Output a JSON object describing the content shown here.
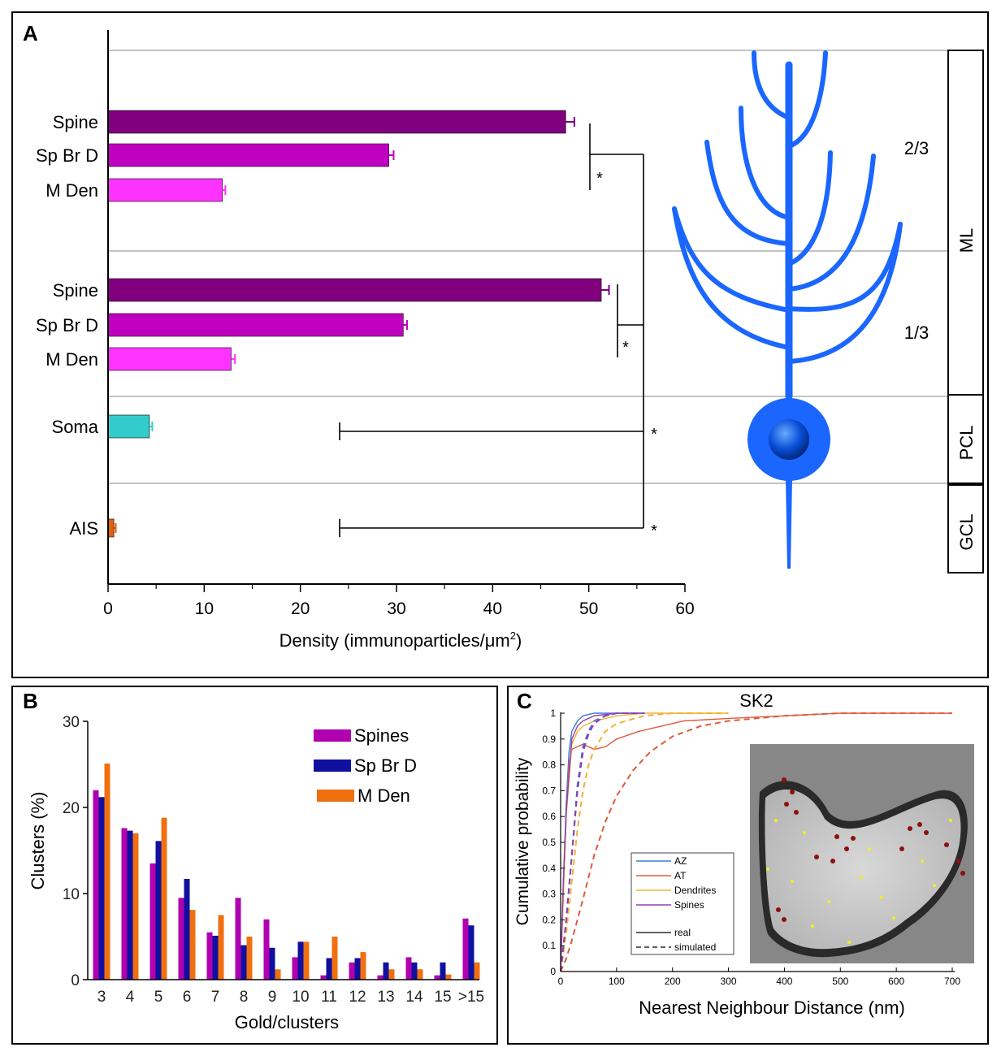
{
  "panelA": {
    "letter": "A",
    "xlabel_prefix": "Density (immunoparticles/",
    "xlabel_mu": "μm",
    "xlabel_sup": "2",
    "xlabel_suffix": ")",
    "star": "*",
    "layers": {
      "upper": "2/3",
      "lower": "1/3",
      "ml": "ML",
      "pcl": "PCL",
      "gcl": "GCL"
    },
    "colors": {
      "spine": "#800080",
      "spbrd": "#c000c0",
      "mden": "#ff33ff",
      "soma": "#33cccc",
      "ais": "#e06010",
      "neuron": "#1a66ff"
    }
  },
  "panelB": {
    "letter": "B",
    "colors": {
      "spines": "#b000b0",
      "spbrd": "#1010a0",
      "mden": "#f07010"
    }
  },
  "panelC": {
    "letter": "C",
    "title": "SK2",
    "legend": {
      "items": [
        "AZ",
        "AT",
        "Dendrites",
        "Spines"
      ],
      "real": "real",
      "simulated": "simulated"
    },
    "colors": {
      "AZ": "#3c78d8",
      "AT": "#e05a3c",
      "Dendrites": "#f0b030",
      "Spines": "#9040b0"
    }
  },
  "chart_data": [
    {
      "type": "bar",
      "orientation": "horizontal",
      "title": "",
      "xlabel": "Density (immunoparticles/μm2)",
      "xlim": [
        0,
        60
      ],
      "xticks": [
        0,
        10,
        20,
        30,
        40,
        50,
        60
      ],
      "categories": [
        "Spine",
        "Sp Br D",
        "M Den",
        "Spine",
        "Sp Br D",
        "M Den",
        "Soma",
        "AIS"
      ],
      "values": [
        47.6,
        29.2,
        11.9,
        51.3,
        30.7,
        12.8,
        4.3,
        0.6
      ],
      "errors": [
        0.9,
        0.5,
        0.3,
        0.8,
        0.4,
        0.4,
        0.3,
        0.2
      ]
    },
    {
      "type": "bar",
      "xlabel": "Gold/clusters",
      "ylabel": "Clusters (%)",
      "ylim": [
        0,
        30
      ],
      "yticks": [
        0,
        10,
        20,
        30
      ],
      "categories": [
        "3",
        "4",
        "5",
        "6",
        "7",
        "8",
        "9",
        "10",
        "11",
        "12",
        "13",
        "14",
        "15",
        ">15"
      ],
      "series": [
        {
          "name": "Spines",
          "values": [
            22.0,
            17.6,
            13.5,
            9.5,
            5.5,
            9.5,
            7.0,
            2.6,
            0.5,
            2.0,
            0.5,
            2.6,
            0.5,
            7.1
          ]
        },
        {
          "name": "Sp Br D",
          "values": [
            21.2,
            17.3,
            16.1,
            11.7,
            5.1,
            4.0,
            3.7,
            4.4,
            2.5,
            2.5,
            2.0,
            2.0,
            2.0,
            6.3
          ]
        },
        {
          "name": "M Den",
          "values": [
            25.1,
            17.0,
            18.8,
            8.1,
            7.5,
            5.0,
            1.2,
            4.4,
            5.0,
            3.2,
            1.2,
            1.2,
            0.6,
            2.0
          ]
        }
      ]
    },
    {
      "type": "line",
      "title": "SK2",
      "xlabel": "Nearest Neighbour Distance (nm)",
      "ylabel": "Cumulative probability",
      "xlim": [
        0,
        700
      ],
      "ylim": [
        0,
        1
      ],
      "xticks": [
        0,
        100,
        200,
        300,
        400,
        500,
        600,
        700
      ],
      "yticks": [
        0,
        0.1,
        0.2,
        0.3,
        0.4,
        0.5,
        0.6,
        0.7,
        0.8,
        0.9,
        1
      ],
      "series": [
        {
          "name": "AZ real",
          "dash": false,
          "x": [
            0,
            5,
            10,
            15,
            20,
            30,
            40,
            60,
            100,
            150
          ],
          "y": [
            0,
            0.35,
            0.65,
            0.85,
            0.93,
            0.97,
            0.99,
            1,
            1,
            1
          ]
        },
        {
          "name": "AT real",
          "dash": false,
          "x": [
            0,
            5,
            10,
            15,
            20,
            30,
            40,
            50,
            60,
            80,
            100,
            140,
            180,
            220,
            300,
            400,
            500,
            700
          ],
          "y": [
            0,
            0.3,
            0.6,
            0.8,
            0.86,
            0.87,
            0.88,
            0.87,
            0.86,
            0.87,
            0.9,
            0.93,
            0.95,
            0.97,
            0.98,
            0.99,
            1,
            1
          ]
        },
        {
          "name": "Dendrites real",
          "dash": false,
          "x": [
            0,
            5,
            10,
            20,
            30,
            40,
            60,
            80,
            100,
            150,
            200,
            300
          ],
          "y": [
            0,
            0.3,
            0.6,
            0.88,
            0.93,
            0.95,
            0.97,
            0.98,
            0.99,
            1,
            1,
            1
          ]
        },
        {
          "name": "Spines real",
          "dash": false,
          "x": [
            0,
            5,
            10,
            20,
            30,
            40,
            60,
            100,
            150
          ],
          "y": [
            0,
            0.35,
            0.62,
            0.9,
            0.95,
            0.97,
            0.99,
            1,
            1
          ]
        },
        {
          "name": "AZ simulated",
          "dash": true,
          "x": [
            0,
            10,
            20,
            30,
            40,
            50,
            60,
            80,
            100,
            150
          ],
          "y": [
            0,
            0.2,
            0.45,
            0.72,
            0.87,
            0.93,
            0.97,
            0.99,
            1,
            1
          ]
        },
        {
          "name": "AT simulated",
          "dash": true,
          "x": [
            0,
            10,
            20,
            40,
            60,
            80,
            100,
            130,
            160,
            200,
            250,
            300,
            400,
            500,
            600,
            700
          ],
          "y": [
            0,
            0.05,
            0.12,
            0.28,
            0.45,
            0.58,
            0.68,
            0.78,
            0.85,
            0.91,
            0.95,
            0.97,
            0.99,
            1,
            1,
            1
          ]
        },
        {
          "name": "Dendrites simulated",
          "dash": true,
          "x": [
            0,
            10,
            20,
            30,
            40,
            50,
            60,
            80,
            100,
            150,
            200,
            300
          ],
          "y": [
            0,
            0.15,
            0.35,
            0.55,
            0.7,
            0.8,
            0.86,
            0.93,
            0.96,
            0.99,
            1,
            1
          ]
        },
        {
          "name": "Spines simulated",
          "dash": true,
          "x": [
            0,
            10,
            20,
            30,
            40,
            50,
            60,
            80,
            100,
            150
          ],
          "y": [
            0,
            0.2,
            0.45,
            0.7,
            0.85,
            0.92,
            0.96,
            0.99,
            1,
            1
          ]
        }
      ]
    }
  ]
}
